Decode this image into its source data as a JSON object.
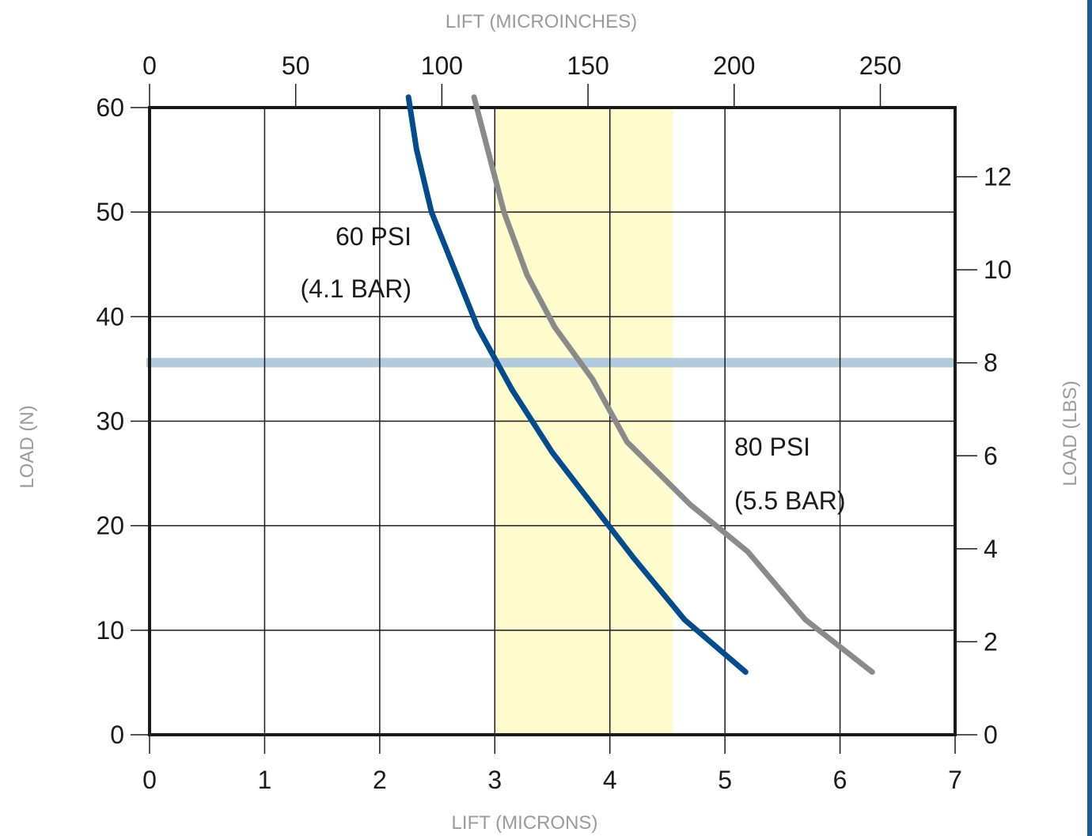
{
  "chart_data": {
    "type": "line",
    "title": "",
    "xlabel_bottom": "LIFT (MICRONS)",
    "xlabel_top": "LIFT (MICROINCHES)",
    "ylabel_left": "LOAD (N)",
    "ylabel_right": "LOAD (LBS)",
    "xlim": [
      0,
      7
    ],
    "ylim": [
      0,
      60
    ],
    "x_ticks": [
      "0",
      "1",
      "2",
      "3",
      "4",
      "5",
      "6",
      "7"
    ],
    "y_ticks": [
      "0",
      "10",
      "20",
      "30",
      "40",
      "50",
      "60"
    ],
    "top_ticks": [
      {
        "value": 0,
        "label": "0"
      },
      {
        "value": 50,
        "label": "50"
      },
      {
        "value": 100,
        "label": "100"
      },
      {
        "value": 150,
        "label": "150"
      },
      {
        "value": 200,
        "label": "200"
      },
      {
        "value": 250,
        "label": "250"
      }
    ],
    "top_unit_per_micron": 39.37,
    "right_ticks": [
      {
        "value": 0,
        "label": "0"
      },
      {
        "value": 2,
        "label": "2"
      },
      {
        "value": 4,
        "label": "4"
      },
      {
        "value": 6,
        "label": "6"
      },
      {
        "value": 8,
        "label": "8"
      },
      {
        "value": 10,
        "label": "10"
      },
      {
        "value": 12,
        "label": "12"
      }
    ],
    "right_unit_to_left": 4.448,
    "grid": true,
    "highlight_band": {
      "x": [
        3.0,
        4.55
      ],
      "color": "#fefbcd"
    },
    "highlight_line": {
      "y": 35.6,
      "color": "#b3c9dc"
    },
    "series": [
      {
        "name": "60 PSI",
        "color": "#024b8c",
        "points": [
          [
            2.25,
            61
          ],
          [
            2.32,
            56
          ],
          [
            2.45,
            50
          ],
          [
            2.65,
            44.5
          ],
          [
            2.85,
            39
          ],
          [
            3.15,
            33
          ],
          [
            3.5,
            27
          ],
          [
            3.85,
            22
          ],
          [
            4.2,
            17
          ],
          [
            4.65,
            11
          ],
          [
            5.18,
            6
          ]
        ]
      },
      {
        "name": "80 PSI",
        "color": "#8a8a8a",
        "points": [
          [
            2.82,
            61
          ],
          [
            2.95,
            55.5
          ],
          [
            3.08,
            50
          ],
          [
            3.28,
            44
          ],
          [
            3.52,
            39
          ],
          [
            3.85,
            34
          ],
          [
            4.15,
            28
          ],
          [
            4.7,
            22
          ],
          [
            5.2,
            17.5
          ],
          [
            5.7,
            11
          ],
          [
            6.28,
            6
          ]
        ]
      }
    ],
    "annotations": [
      {
        "id": "psi60",
        "line1": "60 PSI",
        "line2": "(4.1 BAR)"
      },
      {
        "id": "psi80",
        "line1": "80 PSI",
        "line2": "(5.5 BAR)"
      }
    ]
  }
}
